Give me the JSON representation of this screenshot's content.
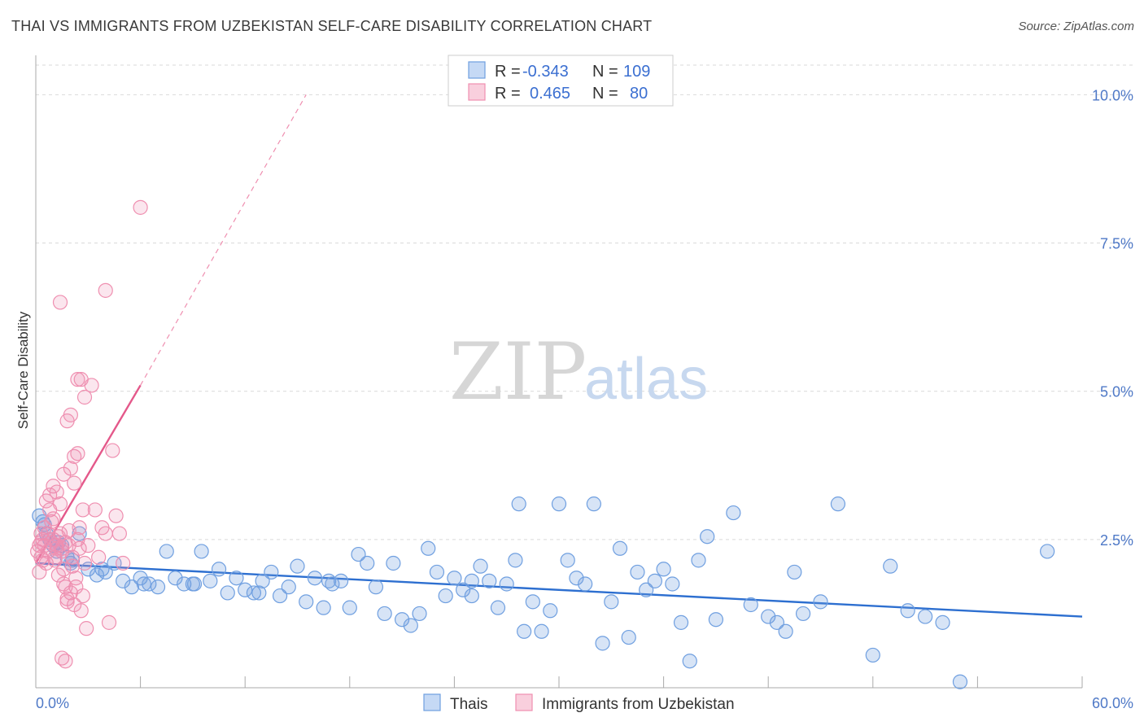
{
  "title": "THAI VS IMMIGRANTS FROM UZBEKISTAN SELF-CARE DISABILITY CORRELATION CHART",
  "source": "Source: ZipAtlas.com",
  "watermark": {
    "zip": "ZIP",
    "atlas": "atlas"
  },
  "colors": {
    "thai": "#6f9fe0",
    "thai_line": "#2d6fd0",
    "uzbek": "#ef8fb0",
    "uzbek_line": "#e4588a",
    "grid": "#d9d9d9",
    "tick": "#4f79c7"
  },
  "legend": {
    "rows": [
      {
        "r_label": "R =",
        "r_value": "-0.343",
        "n_label": "N =",
        "n_value": "109"
      },
      {
        "r_label": "R =",
        "r_value": "0.465",
        "n_label": "N =",
        "n_value": "80"
      }
    ]
  },
  "chart_data": {
    "type": "scatter",
    "title": "THAI VS IMMIGRANTS FROM UZBEKISTAN SELF-CARE DISABILITY CORRELATION CHART",
    "xlabel": "",
    "ylabel": "Self-Care Disability",
    "xlim": [
      0,
      60
    ],
    "ylim": [
      0,
      10.5
    ],
    "x_tick_labels": [
      "0.0%",
      "60.0%"
    ],
    "y_ticks": [
      2.5,
      5.0,
      7.5,
      10.0
    ],
    "y_tick_labels": [
      "2.5%",
      "5.0%",
      "7.5%",
      "10.0%"
    ],
    "bottom_legend": [
      "Thais",
      "Immigrants from Uzbekistan"
    ],
    "series": [
      {
        "name": "Thais",
        "trend": {
          "x": [
            0,
            60
          ],
          "y": [
            2.1,
            1.2
          ]
        },
        "points": [
          [
            0.2,
            2.9
          ],
          [
            0.4,
            2.8
          ],
          [
            0.6,
            2.6
          ],
          [
            0.8,
            2.5
          ],
          [
            1.0,
            2.4
          ],
          [
            1.2,
            2.3
          ],
          [
            1.5,
            2.4
          ],
          [
            1.8,
            2.2
          ],
          [
            2.0,
            2.1
          ],
          [
            2.5,
            2.6
          ],
          [
            3.0,
            2.0
          ],
          [
            3.5,
            1.9
          ],
          [
            4.0,
            1.95
          ],
          [
            4.5,
            2.1
          ],
          [
            5.0,
            1.8
          ],
          [
            5.5,
            1.7
          ],
          [
            6.0,
            1.85
          ],
          [
            6.5,
            1.75
          ],
          [
            7.0,
            1.7
          ],
          [
            7.5,
            2.3
          ],
          [
            8.0,
            1.85
          ],
          [
            8.5,
            1.75
          ],
          [
            9.0,
            1.75
          ],
          [
            9.5,
            2.3
          ],
          [
            10.0,
            1.8
          ],
          [
            10.5,
            2.0
          ],
          [
            11.0,
            1.6
          ],
          [
            11.5,
            1.85
          ],
          [
            12.0,
            1.65
          ],
          [
            12.5,
            1.6
          ],
          [
            13.0,
            1.8
          ],
          [
            13.5,
            1.95
          ],
          [
            14.0,
            1.55
          ],
          [
            14.5,
            1.7
          ],
          [
            15.0,
            2.05
          ],
          [
            15.5,
            1.45
          ],
          [
            16.0,
            1.85
          ],
          [
            16.5,
            1.35
          ],
          [
            17.0,
            1.75
          ],
          [
            17.5,
            1.8
          ],
          [
            18.0,
            1.35
          ],
          [
            18.5,
            2.25
          ],
          [
            19.0,
            2.1
          ],
          [
            19.5,
            1.7
          ],
          [
            20.0,
            1.25
          ],
          [
            20.5,
            2.1
          ],
          [
            21.0,
            1.15
          ],
          [
            21.5,
            1.05
          ],
          [
            22.0,
            1.25
          ],
          [
            22.5,
            2.35
          ],
          [
            23.0,
            1.95
          ],
          [
            23.5,
            1.55
          ],
          [
            24.0,
            1.85
          ],
          [
            24.5,
            1.65
          ],
          [
            25.0,
            1.55
          ],
          [
            25.5,
            2.05
          ],
          [
            26.0,
            1.8
          ],
          [
            26.5,
            1.35
          ],
          [
            27.0,
            1.75
          ],
          [
            27.5,
            2.15
          ],
          [
            28.0,
            0.95
          ],
          [
            28.5,
            1.45
          ],
          [
            29.0,
            0.95
          ],
          [
            29.5,
            1.3
          ],
          [
            30.0,
            3.1
          ],
          [
            30.5,
            2.15
          ],
          [
            31.0,
            1.85
          ],
          [
            31.5,
            1.75
          ],
          [
            32.0,
            3.1
          ],
          [
            32.5,
            0.75
          ],
          [
            33.0,
            1.45
          ],
          [
            33.5,
            2.35
          ],
          [
            34.0,
            0.85
          ],
          [
            34.5,
            1.95
          ],
          [
            35.0,
            1.65
          ],
          [
            35.5,
            1.8
          ],
          [
            36.0,
            2.0
          ],
          [
            36.5,
            1.75
          ],
          [
            37.0,
            1.1
          ],
          [
            37.5,
            0.45
          ],
          [
            38.0,
            2.15
          ],
          [
            38.5,
            2.55
          ],
          [
            39.0,
            1.15
          ],
          [
            40.0,
            2.95
          ],
          [
            41.0,
            1.4
          ],
          [
            42.0,
            1.2
          ],
          [
            42.5,
            1.1
          ],
          [
            43.0,
            0.95
          ],
          [
            43.5,
            1.95
          ],
          [
            44.0,
            1.25
          ],
          [
            45.0,
            1.45
          ],
          [
            46.0,
            3.1
          ],
          [
            48.0,
            0.55
          ],
          [
            49.0,
            2.05
          ],
          [
            50.0,
            1.3
          ],
          [
            51.0,
            1.2
          ],
          [
            52.0,
            1.1
          ],
          [
            53.0,
            0.1
          ],
          [
            58.0,
            2.3
          ],
          [
            27.7,
            3.1
          ],
          [
            25.0,
            1.8
          ],
          [
            12.8,
            1.6
          ],
          [
            9.1,
            1.75
          ],
          [
            6.2,
            1.75
          ],
          [
            3.8,
            2.0
          ],
          [
            2.1,
            2.15
          ],
          [
            1.3,
            2.45
          ],
          [
            0.5,
            2.75
          ],
          [
            16.8,
            1.8
          ]
        ]
      },
      {
        "name": "Immigrants from Uzbekistan",
        "trend": {
          "x": [
            0,
            6
          ],
          "y": [
            2.1,
            5.1
          ]
        },
        "trend_extension": {
          "x": [
            6,
            15.5
          ],
          "y": [
            5.1,
            10.0
          ]
        },
        "points": [
          [
            0.1,
            2.3
          ],
          [
            0.2,
            2.4
          ],
          [
            0.3,
            2.2
          ],
          [
            0.4,
            2.5
          ],
          [
            0.5,
            2.4
          ],
          [
            0.6,
            2.1
          ],
          [
            0.7,
            2.6
          ],
          [
            0.8,
            3.0
          ],
          [
            0.9,
            2.8
          ],
          [
            1.0,
            2.5
          ],
          [
            1.1,
            2.2
          ],
          [
            1.2,
            2.4
          ],
          [
            1.3,
            1.9
          ],
          [
            1.4,
            2.6
          ],
          [
            1.5,
            2.3
          ],
          [
            1.6,
            2.0
          ],
          [
            1.7,
            1.7
          ],
          [
            1.8,
            1.5
          ],
          [
            1.9,
            2.4
          ],
          [
            2.0,
            1.6
          ],
          [
            2.1,
            2.2
          ],
          [
            2.2,
            1.4
          ],
          [
            2.3,
            1.7
          ],
          [
            2.4,
            2.5
          ],
          [
            2.5,
            2.7
          ],
          [
            2.6,
            1.3
          ],
          [
            2.7,
            3.0
          ],
          [
            2.8,
            2.1
          ],
          [
            2.9,
            1.0
          ],
          [
            3.0,
            2.4
          ],
          [
            1.0,
            3.4
          ],
          [
            1.2,
            3.3
          ],
          [
            1.4,
            3.1
          ],
          [
            1.6,
            3.6
          ],
          [
            1.8,
            4.5
          ],
          [
            2.0,
            4.6
          ],
          [
            2.2,
            3.9
          ],
          [
            2.4,
            5.2
          ],
          [
            2.6,
            5.2
          ],
          [
            2.8,
            4.9
          ],
          [
            3.2,
            5.1
          ],
          [
            3.4,
            3.0
          ],
          [
            3.6,
            2.2
          ],
          [
            3.8,
            2.7
          ],
          [
            4.0,
            2.6
          ],
          [
            4.2,
            1.1
          ],
          [
            4.4,
            4.0
          ],
          [
            4.6,
            2.9
          ],
          [
            4.8,
            2.6
          ],
          [
            5.0,
            2.1
          ],
          [
            1.4,
            6.5
          ],
          [
            4.0,
            6.7
          ],
          [
            6.0,
            8.1
          ],
          [
            1.5,
            0.5
          ],
          [
            1.7,
            0.45
          ],
          [
            0.3,
            2.6
          ],
          [
            0.5,
            2.7
          ],
          [
            0.7,
            2.3
          ],
          [
            0.9,
            2.45
          ],
          [
            1.1,
            2.15
          ],
          [
            1.3,
            2.55
          ],
          [
            1.5,
            2.35
          ],
          [
            1.7,
            2.45
          ],
          [
            1.9,
            2.65
          ],
          [
            2.1,
            2.05
          ],
          [
            2.3,
            1.85
          ],
          [
            2.5,
            2.35
          ],
          [
            2.7,
            1.55
          ],
          [
            0.2,
            1.95
          ],
          [
            0.4,
            2.15
          ],
          [
            0.6,
            3.15
          ],
          [
            0.8,
            3.25
          ],
          [
            1.0,
            2.85
          ],
          [
            1.2,
            2.35
          ],
          [
            1.6,
            1.75
          ],
          [
            1.8,
            1.45
          ],
          [
            2.0,
            3.7
          ],
          [
            2.2,
            3.45
          ],
          [
            2.4,
            3.95
          ],
          [
            0.3,
            2.45
          ]
        ]
      }
    ]
  }
}
